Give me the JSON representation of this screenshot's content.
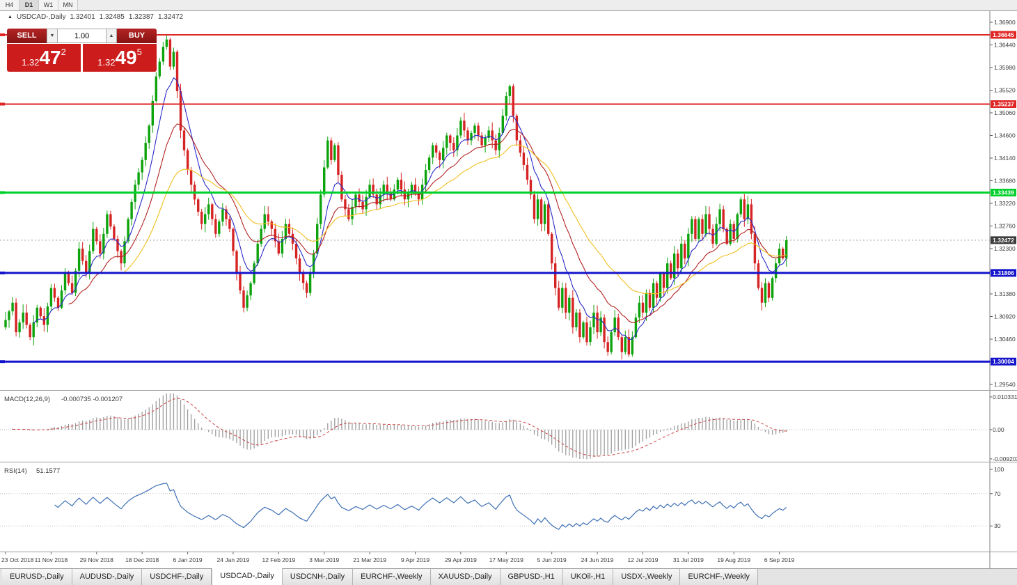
{
  "period_bar": {
    "items": [
      {
        "label": "H4",
        "active": false
      },
      {
        "label": "D1",
        "active": true
      },
      {
        "label": "W1",
        "active": false
      },
      {
        "label": "MN",
        "active": false
      }
    ]
  },
  "header": {
    "collapse_icon": "▲",
    "symbol": "USDCAD-,Daily",
    "open": "1.32401",
    "high": "1.32485",
    "low": "1.32387",
    "close": "1.32472"
  },
  "trade_panel": {
    "sell_label": "SELL",
    "buy_label": "BUY",
    "volume": "1.00",
    "spinner_down_icon": "▼",
    "spinner_up_icon": "▲",
    "sell": {
      "base": "1.32",
      "pips": "47",
      "point": "2"
    },
    "buy": {
      "base": "1.32",
      "pips": "49",
      "point": "5"
    }
  },
  "chart_data": {
    "type": "candlestick",
    "symbol": "USDCAD-",
    "timeframe": "Daily",
    "current": {
      "open": 1.32401,
      "high": 1.32485,
      "low": 1.32387,
      "close": 1.32472
    },
    "y_axis": [
      "1.36900",
      "1.36440",
      "1.35980",
      "1.35520",
      "1.35060",
      "1.34600",
      "1.34140",
      "1.33680",
      "1.33220",
      "1.32760",
      "1.32300",
      "1.31840",
      "1.31380",
      "1.30920",
      "1.30460",
      "1.30000",
      "1.29540"
    ],
    "price_range": [
      1.2954,
      1.369
    ],
    "levels": [
      {
        "price": 1.36645,
        "label": "1.36645",
        "color": "#e02525",
        "width": 2
      },
      {
        "price": 1.35237,
        "label": "1.35237",
        "color": "#e02525",
        "width": 2
      },
      {
        "price": 1.33439,
        "label": "1.33439",
        "color": "#00d02a",
        "width": 3
      },
      {
        "price": 1.31806,
        "label": "1.31806",
        "color": "#1414cc",
        "width": 3
      },
      {
        "price": 1.30004,
        "label": "1.30004",
        "color": "#1414cc",
        "width": 3
      }
    ],
    "current_price": {
      "price": 1.32472,
      "label": "1.32472",
      "color": "#3c3c3c"
    },
    "candle_colors": {
      "up": "#0ca30c",
      "down": "#d62323"
    },
    "moving_averages": [
      {
        "period": 8,
        "color": "#2a2ac8"
      },
      {
        "period": 18,
        "color": "#b22222"
      },
      {
        "period": 34,
        "color": "#f0c020"
      }
    ],
    "candles_count": 224,
    "price_anchors": [
      [
        0,
        1.3085
      ],
      [
        2,
        1.312
      ],
      [
        3,
        1.306
      ],
      [
        5,
        1.31
      ],
      [
        7,
        1.305
      ],
      [
        9,
        1.311
      ],
      [
        11,
        1.3075
      ],
      [
        13,
        1.315
      ],
      [
        15,
        1.311
      ],
      [
        17,
        1.318
      ],
      [
        19,
        1.314
      ],
      [
        21,
        1.323
      ],
      [
        23,
        1.318
      ],
      [
        25,
        1.327
      ],
      [
        27,
        1.322
      ],
      [
        29,
        1.33
      ],
      [
        31,
        1.325
      ],
      [
        33,
        1.32
      ],
      [
        35,
        1.329
      ],
      [
        37,
        1.336
      ],
      [
        39,
        1.341
      ],
      [
        41,
        1.348
      ],
      [
        43,
        1.358
      ],
      [
        45,
        1.364
      ],
      [
        46,
        1.3655
      ],
      [
        47,
        1.36
      ],
      [
        48,
        1.363
      ],
      [
        49,
        1.355
      ],
      [
        50,
        1.347
      ],
      [
        52,
        1.339
      ],
      [
        54,
        1.333
      ],
      [
        56,
        1.328
      ],
      [
        58,
        1.332
      ],
      [
        60,
        1.326
      ],
      [
        62,
        1.331
      ],
      [
        64,
        1.327
      ],
      [
        66,
        1.318
      ],
      [
        68,
        1.311
      ],
      [
        70,
        1.316
      ],
      [
        72,
        1.324
      ],
      [
        74,
        1.33
      ],
      [
        76,
        1.327
      ],
      [
        78,
        1.322
      ],
      [
        80,
        1.328
      ],
      [
        82,
        1.324
      ],
      [
        84,
        1.318
      ],
      [
        86,
        1.314
      ],
      [
        88,
        1.322
      ],
      [
        90,
        1.334
      ],
      [
        92,
        1.345
      ],
      [
        93,
        1.341
      ],
      [
        94,
        1.344
      ],
      [
        95,
        1.338
      ],
      [
        96,
        1.333
      ],
      [
        98,
        1.329
      ],
      [
        100,
        1.334
      ],
      [
        102,
        1.331
      ],
      [
        104,
        1.336
      ],
      [
        106,
        1.332
      ],
      [
        108,
        1.336
      ],
      [
        110,
        1.333
      ],
      [
        112,
        1.337
      ],
      [
        114,
        1.333
      ],
      [
        116,
        1.336
      ],
      [
        118,
        1.333
      ],
      [
        120,
        1.339
      ],
      [
        122,
        1.344
      ],
      [
        124,
        1.341
      ],
      [
        126,
        1.346
      ],
      [
        128,
        1.343
      ],
      [
        130,
        1.349
      ],
      [
        132,
        1.345
      ],
      [
        134,
        1.348
      ],
      [
        136,
        1.344
      ],
      [
        138,
        1.347
      ],
      [
        140,
        1.343
      ],
      [
        142,
        1.35
      ],
      [
        143,
        1.354
      ],
      [
        144,
        1.356
      ],
      [
        145,
        1.35
      ],
      [
        146,
        1.345
      ],
      [
        148,
        1.34
      ],
      [
        150,
        1.334
      ],
      [
        151,
        1.329
      ],
      [
        152,
        1.333
      ],
      [
        153,
        1.328
      ],
      [
        154,
        1.332
      ],
      [
        155,
        1.326
      ],
      [
        156,
        1.32
      ],
      [
        157,
        1.315
      ],
      [
        158,
        1.311
      ],
      [
        159,
        1.315
      ],
      [
        160,
        1.31
      ],
      [
        161,
        1.313
      ],
      [
        162,
        1.307
      ],
      [
        163,
        1.31
      ],
      [
        164,
        1.305
      ],
      [
        165,
        1.308
      ],
      [
        166,
        1.304
      ],
      [
        167,
        1.307
      ],
      [
        168,
        1.31
      ],
      [
        169,
        1.306
      ],
      [
        170,
        1.309
      ],
      [
        171,
        1.304
      ],
      [
        172,
        1.302
      ],
      [
        173,
        1.306
      ],
      [
        174,
        1.309
      ],
      [
        175,
        1.305
      ],
      [
        176,
        1.302
      ],
      [
        177,
        1.305
      ],
      [
        178,
        1.3015
      ],
      [
        179,
        1.305
      ],
      [
        180,
        1.309
      ],
      [
        181,
        1.312
      ],
      [
        182,
        1.31
      ],
      [
        183,
        1.314
      ],
      [
        184,
        1.311
      ],
      [
        185,
        1.316
      ],
      [
        186,
        1.313
      ],
      [
        187,
        1.318
      ],
      [
        188,
        1.315
      ],
      [
        189,
        1.32
      ],
      [
        190,
        1.317
      ],
      [
        191,
        1.322
      ],
      [
        192,
        1.319
      ],
      [
        193,
        1.324
      ],
      [
        194,
        1.321
      ],
      [
        195,
        1.326
      ],
      [
        196,
        1.329
      ],
      [
        197,
        1.325
      ],
      [
        198,
        1.329
      ],
      [
        199,
        1.326
      ],
      [
        200,
        1.33
      ],
      [
        201,
        1.327
      ],
      [
        202,
        1.324
      ],
      [
        203,
        1.328
      ],
      [
        204,
        1.331
      ],
      [
        205,
        1.327
      ],
      [
        206,
        1.324
      ],
      [
        207,
        1.328
      ],
      [
        208,
        1.325
      ],
      [
        209,
        1.33
      ],
      [
        210,
        1.333
      ],
      [
        211,
        1.329
      ],
      [
        212,
        1.332
      ],
      [
        213,
        1.326
      ],
      [
        214,
        1.32
      ],
      [
        215,
        1.315
      ],
      [
        216,
        1.312
      ],
      [
        217,
        1.316
      ],
      [
        218,
        1.313
      ],
      [
        219,
        1.317
      ],
      [
        220,
        1.32
      ],
      [
        221,
        1.323
      ],
      [
        222,
        1.321
      ],
      [
        223,
        1.3247
      ]
    ],
    "x_labels": [
      {
        "i": 0,
        "label": "23 Oct 2018"
      },
      {
        "i": 13,
        "label": "11 Nov 2018"
      },
      {
        "i": 26,
        "label": "29 Nov 2018"
      },
      {
        "i": 39,
        "label": "18 Dec 2018"
      },
      {
        "i": 52,
        "label": "6 Jan 2019"
      },
      {
        "i": 65,
        "label": "24 Jan 2019"
      },
      {
        "i": 78,
        "label": "12 Feb 2019"
      },
      {
        "i": 91,
        "label": "3 Mar 2019"
      },
      {
        "i": 104,
        "label": "21 Mar 2019"
      },
      {
        "i": 117,
        "label": "9 Apr 2019"
      },
      {
        "i": 130,
        "label": "29 Apr 2019"
      },
      {
        "i": 143,
        "label": "17 May 2019"
      },
      {
        "i": 156,
        "label": "5 Jun 2019"
      },
      {
        "i": 169,
        "label": "24 Jun 2019"
      },
      {
        "i": 182,
        "label": "12 Jul 2019"
      },
      {
        "i": 195,
        "label": "31 Jul 2019"
      },
      {
        "i": 208,
        "label": "19 Aug 2019"
      },
      {
        "i": 221,
        "label": "6 Sep 2019"
      }
    ],
    "macd": {
      "label": "MACD(12,26,9)",
      "values": "-0.000735 -0.001207",
      "fast": 12,
      "slow": 26,
      "signal": 9,
      "hist_color": "#9c9c9c",
      "signal_color": "#cc4444",
      "axis": [
        {
          "v": 0.0103311,
          "label": "0.0103311"
        },
        {
          "v": 0,
          "label": "0.00"
        },
        {
          "v": -0.009203,
          "label": "-0.0092030"
        }
      ]
    },
    "rsi": {
      "label": "RSI(14)",
      "value": "51.1577",
      "period": 14,
      "color": "#3d6fb4",
      "levels": [
        70,
        30
      ],
      "axis": [
        {
          "v": 100,
          "label": "100"
        },
        {
          "v": 70,
          "label": "70"
        },
        {
          "v": 30,
          "label": "30"
        }
      ]
    }
  },
  "bottom_tabs": {
    "tabs": [
      {
        "label": "EURUSD-,Daily",
        "active": false
      },
      {
        "label": "AUDUSD-,Daily",
        "active": false
      },
      {
        "label": "USDCHF-,Daily",
        "active": false
      },
      {
        "label": "USDCAD-,Daily",
        "active": true
      },
      {
        "label": "USDCNH-,Daily",
        "active": false
      },
      {
        "label": "EURCHF-,Weekly",
        "active": false
      },
      {
        "label": "XAUUSD-,Daily",
        "active": false
      },
      {
        "label": "GBPUSD-,H1",
        "active": false
      },
      {
        "label": "UKOil-,H1",
        "active": false
      },
      {
        "label": "USDX-,Weekly",
        "active": false
      },
      {
        "label": "EURCHF-,Weekly",
        "active": false
      }
    ]
  }
}
